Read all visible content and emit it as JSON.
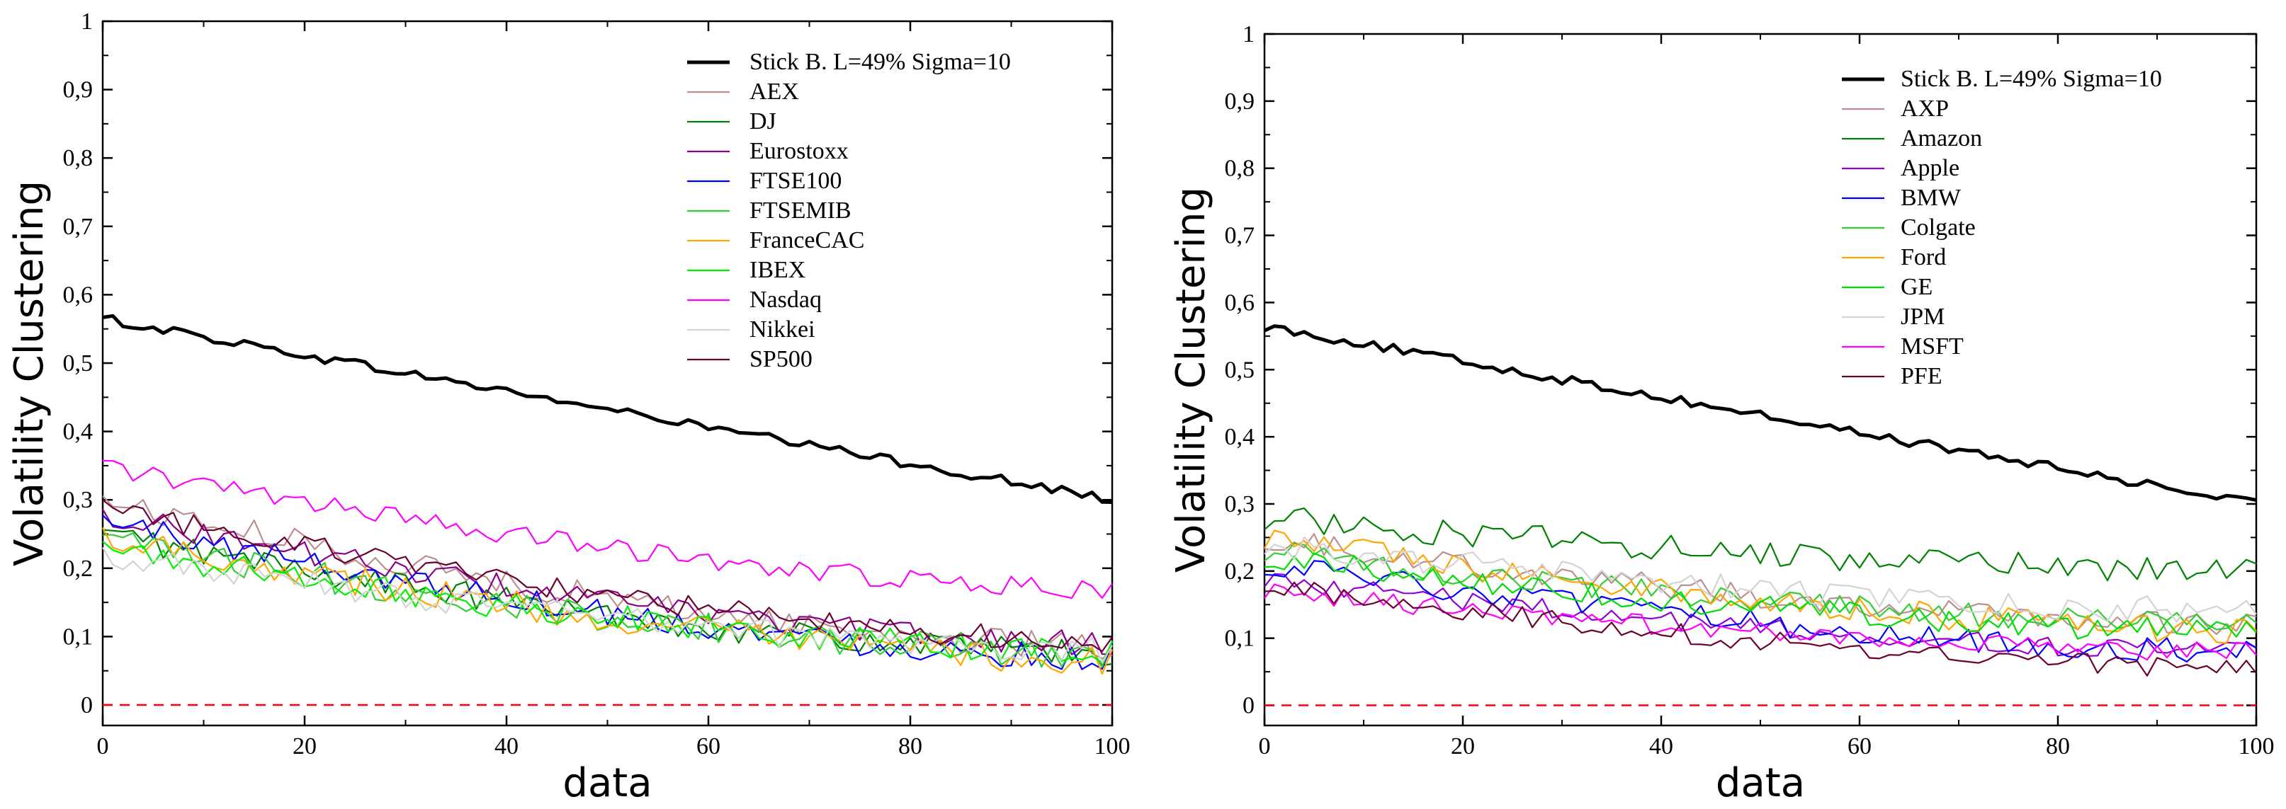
{
  "chart_data": [
    {
      "type": "line",
      "title": "",
      "xlabel": "data",
      "ylabel": "Volatility Clustering",
      "xlim": [
        0,
        100
      ],
      "ylim": [
        -0.03,
        1
      ],
      "x_ticks": [
        0,
        20,
        40,
        60,
        80,
        100
      ],
      "x_tick_labels": [
        "0",
        "20",
        "40",
        "60",
        "80",
        "100"
      ],
      "y_ticks": [
        0,
        0.1,
        0.2,
        0.3,
        0.4,
        0.5,
        0.6,
        0.7,
        0.8,
        0.9,
        1
      ],
      "y_tick_labels": [
        "0",
        "0,1",
        "0,2",
        "0,3",
        "0,4",
        "0,5",
        "0,6",
        "0,7",
        "0,8",
        "0,9",
        "1"
      ],
      "legend_position": "top-right",
      "reference_line": {
        "y": 0,
        "color": "#ff0000",
        "style": "dashed"
      },
      "series": [
        {
          "name": "Stick B. L=49% Sigma=10",
          "color": "#000000",
          "width": 5,
          "start": 0.565,
          "end": 0.3,
          "amp": 0.007
        },
        {
          "name": "AEX",
          "color": "#bc8f8f",
          "width": 2.2,
          "start": 0.3,
          "end": 0.085,
          "amp": 0.02
        },
        {
          "name": "DJ",
          "color": "#008000",
          "width": 2.2,
          "start": 0.25,
          "end": 0.075,
          "amp": 0.02
        },
        {
          "name": "Eurostoxx",
          "color": "#8b008b",
          "width": 2.2,
          "start": 0.28,
          "end": 0.09,
          "amp": 0.018
        },
        {
          "name": "FTSE100",
          "color": "#0000ff",
          "width": 2.2,
          "start": 0.27,
          "end": 0.07,
          "amp": 0.02
        },
        {
          "name": "FTSEMIB",
          "color": "#33cc33",
          "width": 2.2,
          "start": 0.24,
          "end": 0.075,
          "amp": 0.022
        },
        {
          "name": "FranceCAC",
          "color": "#ffa500",
          "width": 2.2,
          "start": 0.25,
          "end": 0.065,
          "amp": 0.022
        },
        {
          "name": "IBEX",
          "color": "#00ee00",
          "width": 2.2,
          "start": 0.23,
          "end": 0.08,
          "amp": 0.02
        },
        {
          "name": "Nasdaq",
          "color": "#ff00ff",
          "width": 2.2,
          "start": 0.35,
          "end": 0.17,
          "amp": 0.015
        },
        {
          "name": "Nikkei",
          "color": "#d3d3d3",
          "width": 2.2,
          "start": 0.22,
          "end": 0.08,
          "amp": 0.02
        },
        {
          "name": "SP500",
          "color": "#6b0033",
          "width": 2.2,
          "start": 0.29,
          "end": 0.095,
          "amp": 0.018
        }
      ]
    },
    {
      "type": "line",
      "title": "",
      "xlabel": "data",
      "ylabel": "Volatility Clustering",
      "xlim": [
        0,
        100
      ],
      "ylim": [
        -0.03,
        1
      ],
      "x_ticks": [
        0,
        20,
        40,
        60,
        80,
        100
      ],
      "x_tick_labels": [
        "0",
        "20",
        "40",
        "60",
        "80",
        "100"
      ],
      "y_ticks": [
        0,
        0.1,
        0.2,
        0.3,
        0.4,
        0.5,
        0.6,
        0.7,
        0.8,
        0.9,
        1
      ],
      "y_tick_labels": [
        "0",
        "0,1",
        "0,2",
        "0,3",
        "0,4",
        "0,5",
        "0,6",
        "0,7",
        "0,8",
        "0,9",
        "1"
      ],
      "legend_position": "top-right",
      "reference_line": {
        "y": 0,
        "color": "#ff0000",
        "style": "dashed"
      },
      "series": [
        {
          "name": "Stick B. L=49% Sigma=10",
          "color": "#000000",
          "width": 5,
          "start": 0.565,
          "end": 0.3,
          "amp": 0.007
        },
        {
          "name": "AXP",
          "color": "#bc8f8f",
          "width": 2.2,
          "start": 0.25,
          "end": 0.12,
          "amp": 0.018
        },
        {
          "name": "Amazon",
          "color": "#008000",
          "width": 2.2,
          "start": 0.28,
          "end": 0.2,
          "amp": 0.02
        },
        {
          "name": "Apple",
          "color": "#9400d3",
          "width": 2.2,
          "start": 0.19,
          "end": 0.08,
          "amp": 0.015
        },
        {
          "name": "BMW",
          "color": "#0000ff",
          "width": 2.2,
          "start": 0.21,
          "end": 0.08,
          "amp": 0.018
        },
        {
          "name": "Colgate",
          "color": "#33cc33",
          "width": 2.2,
          "start": 0.23,
          "end": 0.12,
          "amp": 0.018
        },
        {
          "name": "Ford",
          "color": "#ffa500",
          "width": 2.2,
          "start": 0.25,
          "end": 0.11,
          "amp": 0.02
        },
        {
          "name": "GE",
          "color": "#00dd00",
          "width": 2.2,
          "start": 0.22,
          "end": 0.11,
          "amp": 0.018
        },
        {
          "name": "JPM",
          "color": "#d3d3d3",
          "width": 2.2,
          "start": 0.24,
          "end": 0.14,
          "amp": 0.02
        },
        {
          "name": "MSFT",
          "color": "#ff00ff",
          "width": 2.2,
          "start": 0.17,
          "end": 0.08,
          "amp": 0.015
        },
        {
          "name": "PFE",
          "color": "#6b0033",
          "width": 2.2,
          "start": 0.18,
          "end": 0.055,
          "amp": 0.015
        }
      ]
    }
  ]
}
